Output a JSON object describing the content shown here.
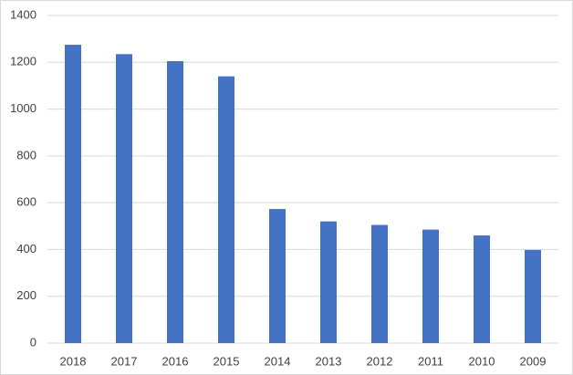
{
  "chart_data": {
    "type": "bar",
    "categories": [
      "2018",
      "2017",
      "2016",
      "2015",
      "2014",
      "2013",
      "2012",
      "2011",
      "2010",
      "2009"
    ],
    "values": [
      1275,
      1235,
      1205,
      1140,
      573,
      520,
      505,
      485,
      460,
      398
    ],
    "color": "#4472c4",
    "ylim": [
      0,
      1400
    ],
    "yticks": [
      0,
      200,
      400,
      600,
      800,
      1000,
      1200,
      1400
    ],
    "grid": true
  }
}
